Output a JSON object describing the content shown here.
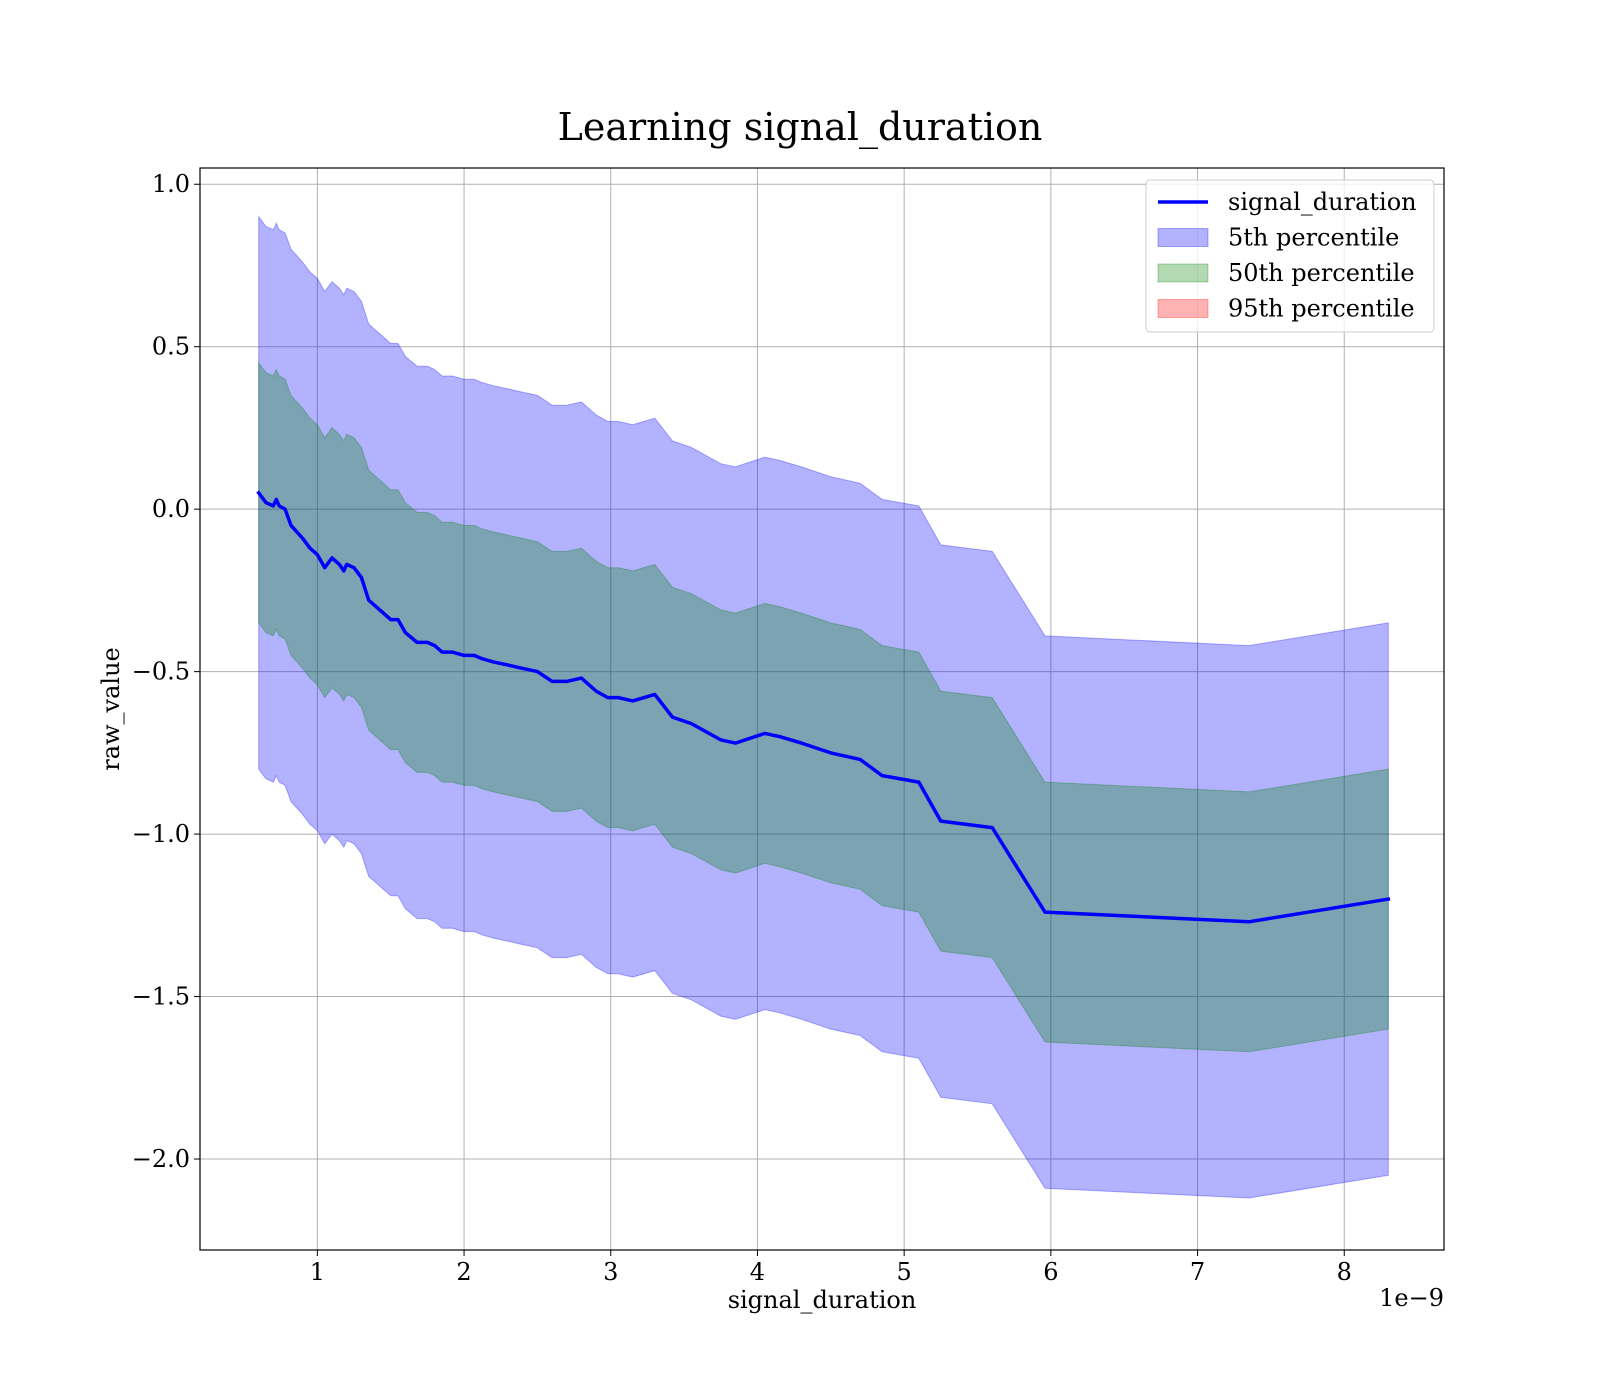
{
  "chart_data": {
    "type": "area",
    "title": "Learning signal_duration",
    "xlabel": "signal_duration",
    "ylabel": "raw_value",
    "x_offset_label": "1e−9",
    "xlim": [
      2e-10,
      8.68e-09
    ],
    "ylim": [
      -2.28,
      1.05
    ],
    "grid": true,
    "legend_position": "top-right",
    "x_ticks": [
      1e-09,
      2e-09,
      3e-09,
      4e-09,
      5e-09,
      6e-09,
      7e-09,
      8e-09
    ],
    "x_tick_labels": [
      "1",
      "2",
      "3",
      "4",
      "5",
      "6",
      "7",
      "8"
    ],
    "y_ticks": [
      1.0,
      0.5,
      0.0,
      -0.5,
      -1.0,
      -1.5,
      -2.0
    ],
    "y_tick_labels": [
      "1.0",
      "0.5",
      "0.0",
      "−0.5",
      "−1.0",
      "−1.5",
      "−2.0"
    ],
    "x": [
      6e-10,
      6.5e-10,
      7e-10,
      7.2e-10,
      7.4e-10,
      7.8e-10,
      8.2e-10,
      9e-10,
      9.5e-10,
      1e-09,
      1.05e-09,
      1.1e-09,
      1.15e-09,
      1.18e-09,
      1.2e-09,
      1.25e-09,
      1.3e-09,
      1.35e-09,
      1.4e-09,
      1.5e-09,
      1.55e-09,
      1.6e-09,
      1.68e-09,
      1.75e-09,
      1.8e-09,
      1.85e-09,
      1.92e-09,
      2e-09,
      2.07e-09,
      2.12e-09,
      2.2e-09,
      2.3e-09,
      2.4e-09,
      2.5e-09,
      2.6e-09,
      2.7e-09,
      2.8e-09,
      2.9e-09,
      2.98e-09,
      3.05e-09,
      3.15e-09,
      3.3e-09,
      3.42e-09,
      3.55e-09,
      3.75e-09,
      3.85e-09,
      4.05e-09,
      4.15e-09,
      4.3e-09,
      4.5e-09,
      4.7e-09,
      4.85e-09,
      5.1e-09,
      5.25e-09,
      5.6e-09,
      5.96e-09,
      7.35e-09,
      8.3e-09
    ],
    "series": [
      {
        "name": "signal_duration",
        "color": "#0000ff",
        "values": [
          0.05,
          0.02,
          0.01,
          0.03,
          0.01,
          0.0,
          -0.05,
          -0.09,
          -0.12,
          -0.14,
          -0.18,
          -0.15,
          -0.17,
          -0.19,
          -0.17,
          -0.18,
          -0.21,
          -0.28,
          -0.3,
          -0.34,
          -0.34,
          -0.38,
          -0.41,
          -0.41,
          -0.42,
          -0.44,
          -0.44,
          -0.45,
          -0.45,
          -0.46,
          -0.47,
          -0.48,
          -0.49,
          -0.5,
          -0.53,
          -0.53,
          -0.52,
          -0.56,
          -0.58,
          -0.58,
          -0.59,
          -0.57,
          -0.64,
          -0.66,
          -0.71,
          -0.72,
          -0.69,
          -0.7,
          -0.72,
          -0.75,
          -0.77,
          -0.82,
          -0.84,
          -0.96,
          -0.98,
          -1.24,
          -1.27,
          -1.2
        ]
      }
    ],
    "bands": [
      {
        "name": "5th percentile",
        "color": "#0000ff",
        "opacity": 0.3,
        "offset": 0.85
      },
      {
        "name": "50th percentile",
        "color": "#008000",
        "opacity": 0.3,
        "offset": 0.4
      },
      {
        "name": "95th percentile",
        "color": "#ff0000",
        "opacity": 0.3,
        "offset": null
      }
    ]
  }
}
